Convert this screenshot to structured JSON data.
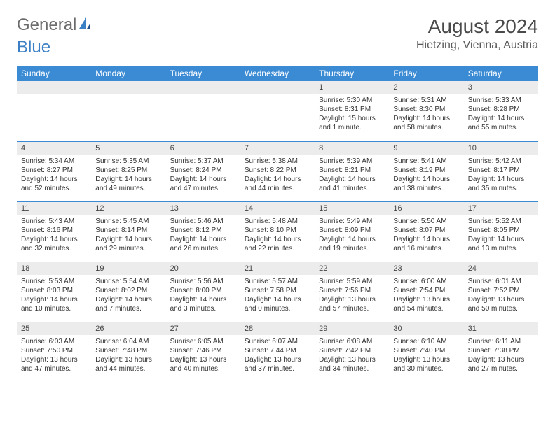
{
  "logo": {
    "text_general": "General",
    "text_blue": "Blue"
  },
  "title": {
    "month": "August 2024",
    "location": "Hietzing, Vienna, Austria"
  },
  "weekday_bg": "#3b8bd4",
  "daynum_bg": "#ececec",
  "weekdays": [
    "Sunday",
    "Monday",
    "Tuesday",
    "Wednesday",
    "Thursday",
    "Friday",
    "Saturday"
  ],
  "weeks": [
    [
      null,
      null,
      null,
      null,
      {
        "n": "1",
        "sunrise": "Sunrise: 5:30 AM",
        "sunset": "Sunset: 8:31 PM",
        "daylight": "Daylight: 15 hours and 1 minute."
      },
      {
        "n": "2",
        "sunrise": "Sunrise: 5:31 AM",
        "sunset": "Sunset: 8:30 PM",
        "daylight": "Daylight: 14 hours and 58 minutes."
      },
      {
        "n": "3",
        "sunrise": "Sunrise: 5:33 AM",
        "sunset": "Sunset: 8:28 PM",
        "daylight": "Daylight: 14 hours and 55 minutes."
      }
    ],
    [
      {
        "n": "4",
        "sunrise": "Sunrise: 5:34 AM",
        "sunset": "Sunset: 8:27 PM",
        "daylight": "Daylight: 14 hours and 52 minutes."
      },
      {
        "n": "5",
        "sunrise": "Sunrise: 5:35 AM",
        "sunset": "Sunset: 8:25 PM",
        "daylight": "Daylight: 14 hours and 49 minutes."
      },
      {
        "n": "6",
        "sunrise": "Sunrise: 5:37 AM",
        "sunset": "Sunset: 8:24 PM",
        "daylight": "Daylight: 14 hours and 47 minutes."
      },
      {
        "n": "7",
        "sunrise": "Sunrise: 5:38 AM",
        "sunset": "Sunset: 8:22 PM",
        "daylight": "Daylight: 14 hours and 44 minutes."
      },
      {
        "n": "8",
        "sunrise": "Sunrise: 5:39 AM",
        "sunset": "Sunset: 8:21 PM",
        "daylight": "Daylight: 14 hours and 41 minutes."
      },
      {
        "n": "9",
        "sunrise": "Sunrise: 5:41 AM",
        "sunset": "Sunset: 8:19 PM",
        "daylight": "Daylight: 14 hours and 38 minutes."
      },
      {
        "n": "10",
        "sunrise": "Sunrise: 5:42 AM",
        "sunset": "Sunset: 8:17 PM",
        "daylight": "Daylight: 14 hours and 35 minutes."
      }
    ],
    [
      {
        "n": "11",
        "sunrise": "Sunrise: 5:43 AM",
        "sunset": "Sunset: 8:16 PM",
        "daylight": "Daylight: 14 hours and 32 minutes."
      },
      {
        "n": "12",
        "sunrise": "Sunrise: 5:45 AM",
        "sunset": "Sunset: 8:14 PM",
        "daylight": "Daylight: 14 hours and 29 minutes."
      },
      {
        "n": "13",
        "sunrise": "Sunrise: 5:46 AM",
        "sunset": "Sunset: 8:12 PM",
        "daylight": "Daylight: 14 hours and 26 minutes."
      },
      {
        "n": "14",
        "sunrise": "Sunrise: 5:48 AM",
        "sunset": "Sunset: 8:10 PM",
        "daylight": "Daylight: 14 hours and 22 minutes."
      },
      {
        "n": "15",
        "sunrise": "Sunrise: 5:49 AM",
        "sunset": "Sunset: 8:09 PM",
        "daylight": "Daylight: 14 hours and 19 minutes."
      },
      {
        "n": "16",
        "sunrise": "Sunrise: 5:50 AM",
        "sunset": "Sunset: 8:07 PM",
        "daylight": "Daylight: 14 hours and 16 minutes."
      },
      {
        "n": "17",
        "sunrise": "Sunrise: 5:52 AM",
        "sunset": "Sunset: 8:05 PM",
        "daylight": "Daylight: 14 hours and 13 minutes."
      }
    ],
    [
      {
        "n": "18",
        "sunrise": "Sunrise: 5:53 AM",
        "sunset": "Sunset: 8:03 PM",
        "daylight": "Daylight: 14 hours and 10 minutes."
      },
      {
        "n": "19",
        "sunrise": "Sunrise: 5:54 AM",
        "sunset": "Sunset: 8:02 PM",
        "daylight": "Daylight: 14 hours and 7 minutes."
      },
      {
        "n": "20",
        "sunrise": "Sunrise: 5:56 AM",
        "sunset": "Sunset: 8:00 PM",
        "daylight": "Daylight: 14 hours and 3 minutes."
      },
      {
        "n": "21",
        "sunrise": "Sunrise: 5:57 AM",
        "sunset": "Sunset: 7:58 PM",
        "daylight": "Daylight: 14 hours and 0 minutes."
      },
      {
        "n": "22",
        "sunrise": "Sunrise: 5:59 AM",
        "sunset": "Sunset: 7:56 PM",
        "daylight": "Daylight: 13 hours and 57 minutes."
      },
      {
        "n": "23",
        "sunrise": "Sunrise: 6:00 AM",
        "sunset": "Sunset: 7:54 PM",
        "daylight": "Daylight: 13 hours and 54 minutes."
      },
      {
        "n": "24",
        "sunrise": "Sunrise: 6:01 AM",
        "sunset": "Sunset: 7:52 PM",
        "daylight": "Daylight: 13 hours and 50 minutes."
      }
    ],
    [
      {
        "n": "25",
        "sunrise": "Sunrise: 6:03 AM",
        "sunset": "Sunset: 7:50 PM",
        "daylight": "Daylight: 13 hours and 47 minutes."
      },
      {
        "n": "26",
        "sunrise": "Sunrise: 6:04 AM",
        "sunset": "Sunset: 7:48 PM",
        "daylight": "Daylight: 13 hours and 44 minutes."
      },
      {
        "n": "27",
        "sunrise": "Sunrise: 6:05 AM",
        "sunset": "Sunset: 7:46 PM",
        "daylight": "Daylight: 13 hours and 40 minutes."
      },
      {
        "n": "28",
        "sunrise": "Sunrise: 6:07 AM",
        "sunset": "Sunset: 7:44 PM",
        "daylight": "Daylight: 13 hours and 37 minutes."
      },
      {
        "n": "29",
        "sunrise": "Sunrise: 6:08 AM",
        "sunset": "Sunset: 7:42 PM",
        "daylight": "Daylight: 13 hours and 34 minutes."
      },
      {
        "n": "30",
        "sunrise": "Sunrise: 6:10 AM",
        "sunset": "Sunset: 7:40 PM",
        "daylight": "Daylight: 13 hours and 30 minutes."
      },
      {
        "n": "31",
        "sunrise": "Sunrise: 6:11 AM",
        "sunset": "Sunset: 7:38 PM",
        "daylight": "Daylight: 13 hours and 27 minutes."
      }
    ]
  ]
}
